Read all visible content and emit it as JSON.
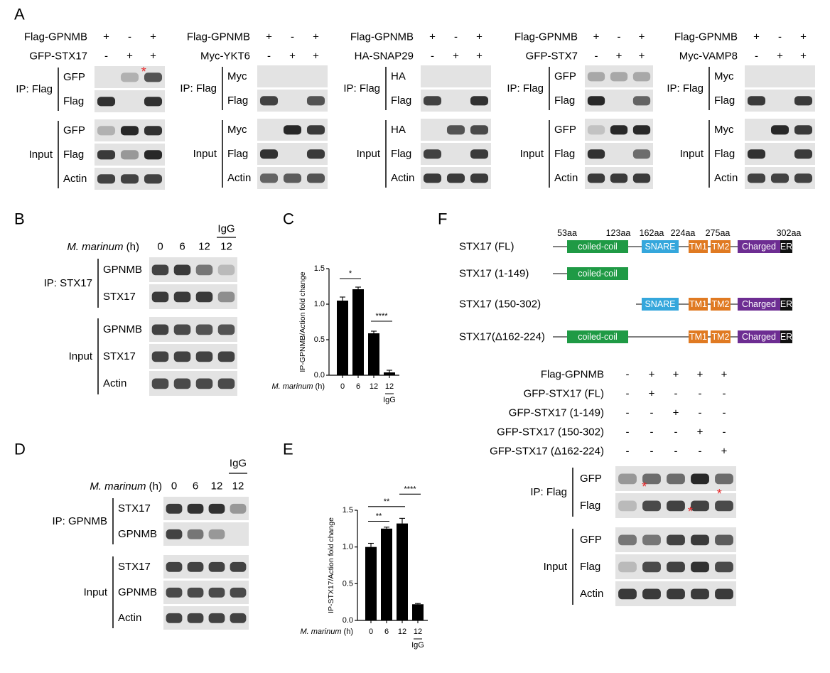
{
  "panels": {
    "A": {
      "letter": "A",
      "blots": [
        {
          "rows": [
            "Flag-GPNMB",
            "GFP-STX17"
          ],
          "signs": [
            [
              "+",
              "-",
              "+"
            ],
            [
              "-",
              "+",
              "+"
            ]
          ],
          "ip_label": "IP: Flag",
          "ip_bands": [
            "GFP",
            "Flag"
          ],
          "input_label": "Input",
          "input_bands": [
            "GFP",
            "Flag",
            "Actin"
          ],
          "marker": "*"
        },
        {
          "rows": [
            "Flag-GPNMB",
            "Myc-YKT6"
          ],
          "signs": [
            [
              "+",
              "-",
              "+"
            ],
            [
              "-",
              "+",
              "+"
            ]
          ],
          "ip_label": "IP: Flag",
          "ip_bands": [
            "Myc",
            "Flag"
          ],
          "input_label": "Input",
          "input_bands": [
            "Myc",
            "Flag",
            "Actin"
          ]
        },
        {
          "rows": [
            "Flag-GPNMB",
            "HA-SNAP29"
          ],
          "signs": [
            [
              "+",
              "-",
              "+"
            ],
            [
              "-",
              "+",
              "+"
            ]
          ],
          "ip_label": "IP: Flag",
          "ip_bands": [
            "HA",
            "Flag"
          ],
          "input_label": "Input",
          "input_bands": [
            "HA",
            "Flag",
            "Actin"
          ]
        },
        {
          "rows": [
            "Flag-GPNMB",
            "GFP-STX7"
          ],
          "signs": [
            [
              "+",
              "-",
              "+"
            ],
            [
              "-",
              "+",
              "+"
            ]
          ],
          "ip_label": "IP: Flag",
          "ip_bands": [
            "GFP",
            "Flag"
          ],
          "input_label": "Input",
          "input_bands": [
            "GFP",
            "Flag",
            "Actin"
          ]
        },
        {
          "rows": [
            "Flag-GPNMB",
            "Myc-VAMP8"
          ],
          "signs": [
            [
              "+",
              "-",
              "+"
            ],
            [
              "-",
              "+",
              "+"
            ]
          ],
          "ip_label": "IP: Flag",
          "ip_bands": [
            "Myc",
            "Flag"
          ],
          "input_label": "Input",
          "input_bands": [
            "Myc",
            "Flag",
            "Actin"
          ]
        }
      ]
    },
    "B": {
      "letter": "B",
      "time_label": "M. marinum",
      "time_unit": " (h)",
      "times": [
        "0",
        "6",
        "12",
        "12"
      ],
      "igg": "IgG",
      "ip_label": "IP: STX17",
      "ip_bands": [
        "GPNMB",
        "STX17"
      ],
      "input_label": "Input",
      "input_bands": [
        "GPNMB",
        "STX17",
        "Actin"
      ]
    },
    "D": {
      "letter": "D",
      "time_label": "M. marinum",
      "time_unit": " (h)",
      "times": [
        "0",
        "6",
        "12",
        "12"
      ],
      "igg": "IgG",
      "ip_label": "IP: GPNMB",
      "ip_bands": [
        "STX17",
        "GPNMB"
      ],
      "input_label": "Input",
      "input_bands": [
        "STX17",
        "GPNMB",
        "Actin"
      ]
    },
    "F": {
      "letter": "F",
      "positions": [
        "53aa",
        "123aa",
        "162aa",
        "224aa",
        "275aa",
        "302aa"
      ],
      "constructs": [
        "STX17 (FL)",
        "STX17 (1-149)",
        "STX17 (150-302)",
        "STX17(Δ162-224)"
      ],
      "domains": {
        "coiled_coil": "coiled-coil",
        "snare": "SNARE",
        "tm1": "TM1",
        "tm2": "TM2",
        "charged": "Charged",
        "er": "ER"
      },
      "rows": [
        "Flag-GPNMB",
        "GFP-STX17 (FL)",
        "GFP-STX17 (1-149)",
        "GFP-STX17 (150-302)",
        "GFP-STX17 (Δ162-224)"
      ],
      "signs": [
        [
          "-",
          "+",
          "+",
          "+",
          "+"
        ],
        [
          "-",
          "+",
          "-",
          "-",
          "-"
        ],
        [
          "-",
          "-",
          "+",
          "-",
          "-"
        ],
        [
          "-",
          "-",
          "-",
          "+",
          "-"
        ],
        [
          "-",
          "-",
          "-",
          "-",
          "+"
        ]
      ],
      "ip_label": "IP: Flag",
      "ip_bands": [
        "GFP",
        "Flag"
      ],
      "input_label": "Input",
      "input_bands": [
        "GFP",
        "Flag",
        "Actin"
      ],
      "marker": "*"
    }
  },
  "colors": {
    "coiled_coil": "#1f9a45",
    "snare": "#35a7dc",
    "tm": "#e07a22",
    "charged": "#6d2d92",
    "er": "#111111",
    "asterisk": "#e8282a"
  },
  "chart_data": [
    {
      "panel": "C",
      "type": "bar",
      "ylabel": "IP-GPNMB/Action fold change",
      "xlabel_prefix": "M. marinum",
      "xlabel_unit": " (h)",
      "categories": [
        "0",
        "6",
        "12",
        "12"
      ],
      "group_label": "IgG",
      "values": [
        1.05,
        1.21,
        0.59,
        0.04
      ],
      "errors": [
        0.05,
        0.03,
        0.03,
        0.03
      ],
      "ylim": [
        0,
        1.5
      ],
      "yticks": [
        "0.0",
        "0.5",
        "1.0",
        "1.5"
      ],
      "significance": [
        "*",
        "****"
      ]
    },
    {
      "panel": "E",
      "type": "bar",
      "ylabel": "IP-STX17/Action fold change",
      "xlabel_prefix": "M. marinum",
      "xlabel_unit": " (h)",
      "categories": [
        "0",
        "6",
        "12",
        "12"
      ],
      "group_label": "IgG",
      "values": [
        1.0,
        1.25,
        1.32,
        0.22
      ],
      "errors": [
        0.05,
        0.02,
        0.07,
        0.01
      ],
      "ylim": [
        0,
        1.5
      ],
      "yticks": [
        "0.0",
        "0.5",
        "1.0",
        "1.5"
      ],
      "significance": [
        "**",
        "**",
        "****"
      ]
    }
  ]
}
